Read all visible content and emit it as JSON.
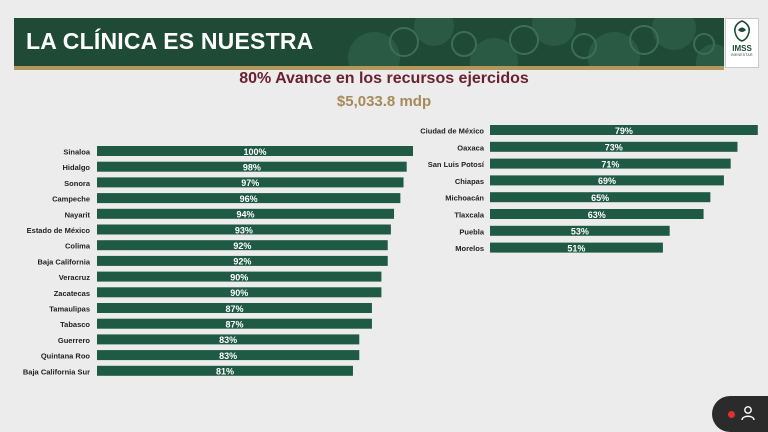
{
  "header": {
    "title": "LA CLÍNICA ES NUESTRA",
    "logo_name": "IMSS",
    "logo_sub": "BIENESTAR"
  },
  "colors": {
    "banner": "#1f4a36",
    "gold": "#b4975a",
    "bar": "#1f5a44",
    "subtitle": "#6b2131",
    "amount": "#a8895a"
  },
  "chart_data": [
    {
      "type": "bar",
      "orientation": "horizontal",
      "title": "80% Avance en los recursos ejercidos",
      "subtitle": "$5,033.8 mdp",
      "categories": [
        "Sinaloa",
        "Hidalgo",
        "Sonora",
        "Campeche",
        "Nayarit",
        "Estado de México",
        "Colima",
        "Baja California",
        "Veracruz",
        "Zacatecas",
        "Tamaulipas",
        "Tabasco",
        "Guerrero",
        "Quintana Roo",
        "Baja California Sur"
      ],
      "values": [
        100,
        98,
        97,
        96,
        94,
        93,
        92,
        92,
        90,
        90,
        87,
        87,
        83,
        83,
        81
      ],
      "labels": [
        "100%",
        "98%",
        "97%",
        "96%",
        "94%",
        "93%",
        "92%",
        "92%",
        "90%",
        "90%",
        "87%",
        "87%",
        "83%",
        "83%",
        "81%"
      ],
      "unit": "%"
    },
    {
      "type": "bar",
      "orientation": "horizontal",
      "categories": [
        "Ciudad de México",
        "Oaxaca",
        "San Luis Potosí",
        "Chiapas",
        "Michoacán",
        "Tlaxcala",
        "Puebla",
        "Morelos"
      ],
      "values": [
        79,
        73,
        71,
        69,
        65,
        63,
        53,
        51
      ],
      "labels": [
        "79%",
        "73%",
        "71%",
        "69%",
        "65%",
        "63%",
        "53%",
        "51%"
      ],
      "unit": "%"
    }
  ]
}
